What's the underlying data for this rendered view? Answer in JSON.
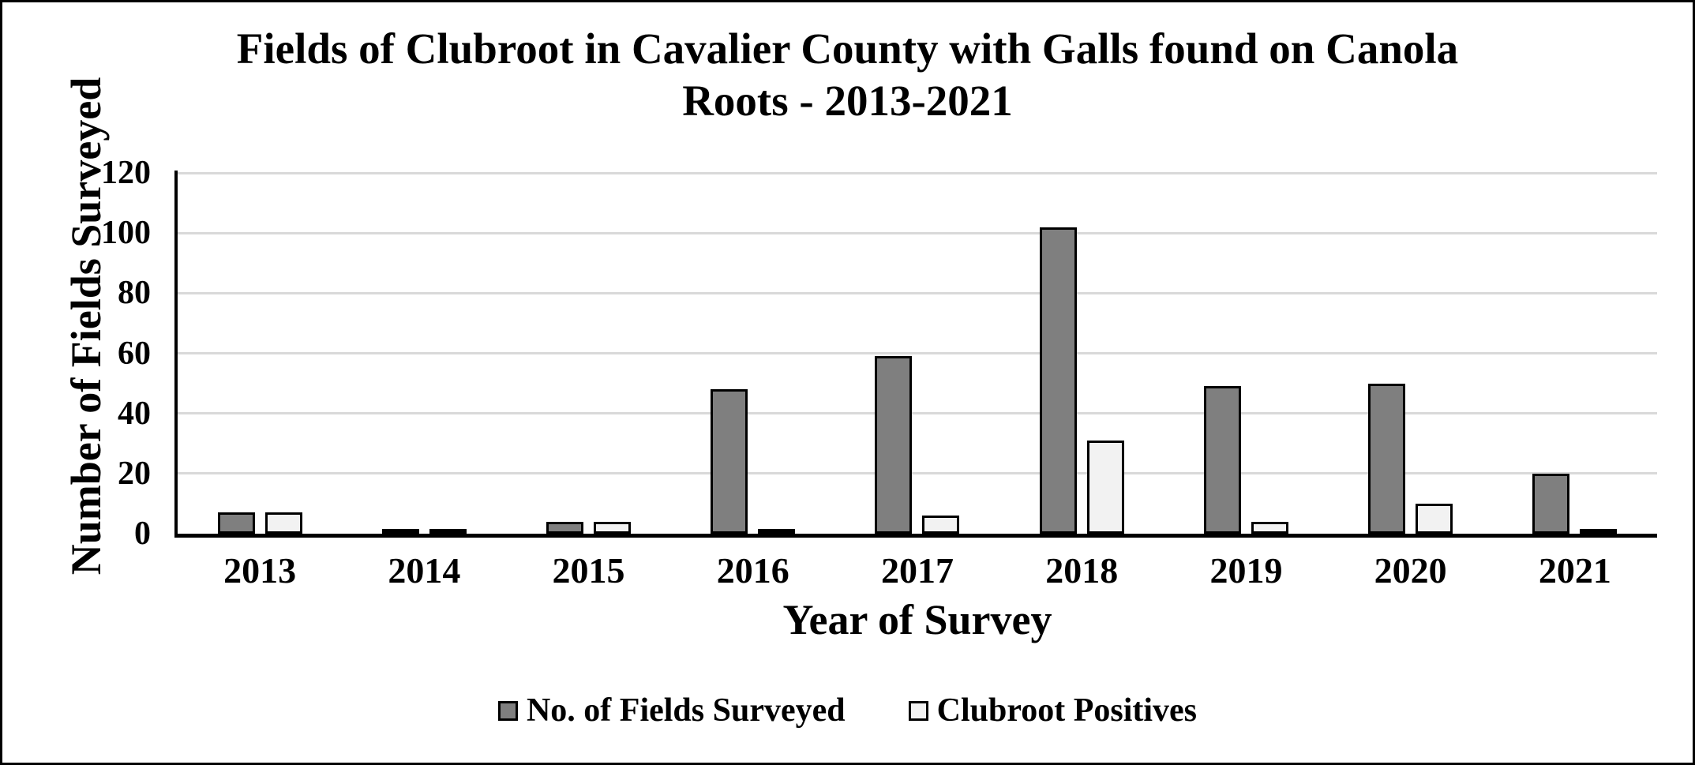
{
  "title": {
    "lines": [
      "Fields of Clubroot in Cavalier County with Galls found on Canola",
      "Roots - 2013-2021"
    ]
  },
  "chart_data": {
    "type": "bar",
    "title": "Fields of Clubroot in Cavalier County with Galls found on Canola Roots - 2013-2021",
    "categories": [
      "2013",
      "2014",
      "2015",
      "2016",
      "2017",
      "2018",
      "2019",
      "2020",
      "2021"
    ],
    "series": [
      {
        "name": "No. of Fields Surveyed",
        "color": "#7f7f7f",
        "values": [
          7,
          1,
          4,
          48,
          59,
          102,
          49,
          50,
          20
        ]
      },
      {
        "name": "Clubroot Positives",
        "color": "#f2f2f2",
        "values": [
          7,
          1,
          4,
          1,
          6,
          31,
          4,
          10,
          1
        ]
      }
    ],
    "xlabel": "Year of Survey",
    "ylabel": "Number of Fields Surveyed",
    "ylim": [
      0,
      120
    ],
    "ytick_interval": 20,
    "yticks": [
      "0",
      "20",
      "40",
      "60",
      "80",
      "100",
      "120"
    ],
    "grid": "horizontal",
    "legend_position": "bottom"
  },
  "colors": {
    "bar_fill_dark": "#7f7f7f",
    "bar_fill_light": "#f2f2f2",
    "bar_border": "#000000",
    "gridline": "#d9d9d9",
    "axis": "#000000",
    "frame_border": "#000000",
    "background": "#ffffff",
    "text": "#000000"
  }
}
